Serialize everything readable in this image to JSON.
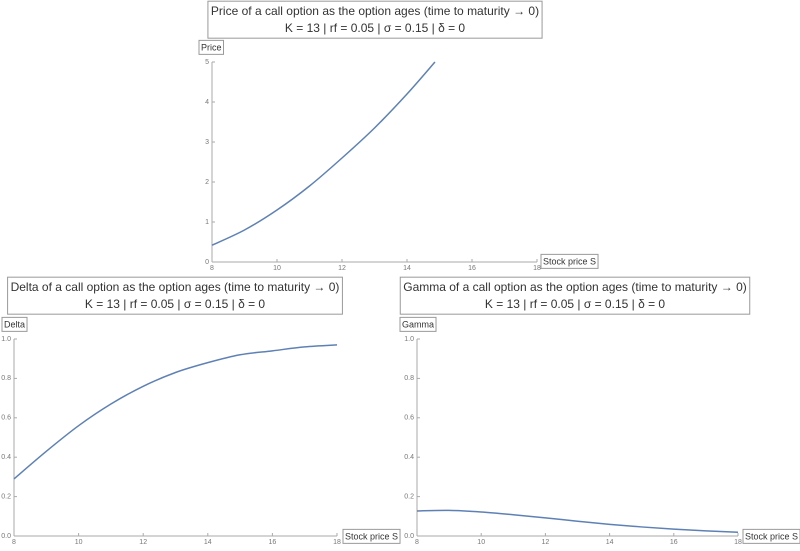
{
  "chart_data": [
    {
      "type": "line",
      "title": "Price of a call option as the option ages (time to maturity → 0)",
      "subtitle": "K = 13 | rf = 0.05 | σ = 0.15 | δ = 0",
      "xlabel": "Stock price S",
      "ylabel": "Price",
      "x": [
        8,
        9,
        10,
        11,
        12,
        13,
        14,
        14.86
      ],
      "series": [
        {
          "color": "#5e81b5",
          "values": [
            0.42,
            0.8,
            1.3,
            1.9,
            2.6,
            3.35,
            4.2,
            5.0
          ]
        }
      ],
      "xlim": [
        8,
        18
      ],
      "ylim": [
        0,
        5
      ],
      "xticks": [
        8,
        10,
        12,
        14,
        16,
        18
      ],
      "yticks": [
        0,
        1,
        2,
        3,
        4,
        5
      ]
    },
    {
      "type": "line",
      "title": "Delta of a call option as the option ages (time to maturity → 0)",
      "subtitle": "K = 13 | rf = 0.05 | σ = 0.15 | δ = 0",
      "xlabel": "Stock price S",
      "ylabel": "Delta",
      "x": [
        8,
        9,
        10,
        11,
        12,
        13,
        14,
        15,
        16,
        17,
        18
      ],
      "series": [
        {
          "color": "#5e81b5",
          "values": [
            0.29,
            0.43,
            0.56,
            0.67,
            0.76,
            0.83,
            0.88,
            0.92,
            0.94,
            0.96,
            0.97
          ]
        }
      ],
      "xlim": [
        8,
        18
      ],
      "ylim": [
        0,
        1
      ],
      "xticks": [
        8,
        10,
        12,
        14,
        16,
        18
      ],
      "yticks": [
        {
          "value": 0,
          "label": "0.0"
        },
        0.2,
        0.4,
        0.6,
        0.8,
        {
          "value": 1,
          "label": "1.0"
        }
      ]
    },
    {
      "type": "line",
      "title": "Gamma of a call option as the option ages (time to maturity → 0)",
      "subtitle": "K = 13 | rf = 0.05 | σ = 0.15 | δ = 0",
      "xlabel": "Stock price S",
      "ylabel": "Gamma",
      "x": [
        8,
        9,
        10,
        11,
        12,
        13,
        14,
        15,
        16,
        17,
        18
      ],
      "series": [
        {
          "color": "#5e81b5",
          "values": [
            0.127,
            0.13,
            0.122,
            0.108,
            0.092,
            0.075,
            0.059,
            0.046,
            0.035,
            0.026,
            0.019
          ]
        }
      ],
      "xlim": [
        8,
        18
      ],
      "ylim": [
        0,
        1
      ],
      "xticks": [
        8,
        10,
        12,
        14,
        16,
        18
      ],
      "yticks": [
        {
          "value": 0,
          "label": "0.0"
        },
        0.2,
        0.4,
        0.6,
        0.8,
        {
          "value": 1,
          "label": "1.0"
        }
      ]
    }
  ]
}
